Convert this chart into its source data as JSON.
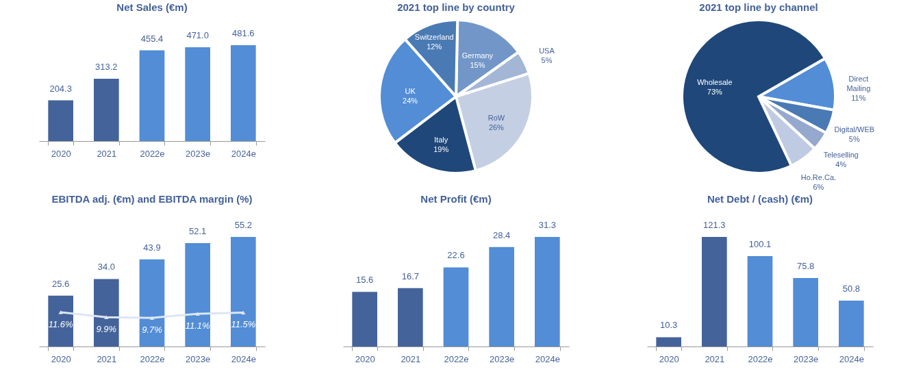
{
  "chart_data": [
    {
      "type": "bar",
      "title": "Net Sales (€m)",
      "categories": [
        "2020",
        "2021",
        "2022e",
        "2023e",
        "2024e"
      ],
      "values": [
        204.3,
        313.2,
        455.4,
        471.0,
        481.6
      ],
      "colors": [
        "#44639a",
        "#44639a",
        "#528dd6",
        "#528dd6",
        "#528dd6"
      ],
      "value_labels": [
        "204.3",
        "313.2",
        "455.4",
        "471.0",
        "481.6"
      ]
    },
    {
      "type": "pie",
      "title": "2021 top line by country",
      "categories": [
        "Germany",
        "USA",
        "RoW",
        "Italy",
        "UK",
        "Switzerland"
      ],
      "values": [
        15,
        5,
        26,
        19,
        24,
        12
      ],
      "colors": [
        "#7296c8",
        "#a3b6d6",
        "#c4cfe3",
        "#1f4779",
        "#528dd6",
        "#4a7ab4"
      ],
      "value_labels": [
        "15%",
        "5%",
        "26%",
        "19%",
        "24%",
        "12%"
      ]
    },
    {
      "type": "pie",
      "title": "2021 top line by channel",
      "categories": [
        "Direct Mailing",
        "Digital/WEB",
        "Teleselling",
        "Ho.Re.Ca.",
        "Wholesale"
      ],
      "values": [
        11,
        5,
        4,
        6,
        73
      ],
      "colors": [
        "#528dd6",
        "#4a7ab4",
        "#95a9cf",
        "#bfcbe2",
        "#1f4779"
      ],
      "value_labels": [
        "11%",
        "5%",
        "4%",
        "6%",
        "73%"
      ]
    },
    {
      "type": "bar",
      "title": "EBITDA adj. (€m) and EBITDA margin (%)",
      "categories": [
        "2020",
        "2021",
        "2022e",
        "2023e",
        "2024e"
      ],
      "series": [
        {
          "type": "bar",
          "colors": [
            "#44639a",
            "#44639a",
            "#528dd6",
            "#528dd6",
            "#528dd6"
          ],
          "values": [
            25.6,
            34.0,
            43.9,
            52.1,
            55.2
          ],
          "value_labels": [
            "25.6",
            "34.0",
            "43.9",
            "52.1",
            "55.2"
          ]
        },
        {
          "type": "line",
          "axis": "y2",
          "color": "#dce6f4",
          "values": [
            11.6,
            9.9,
            9.7,
            11.1,
            11.5
          ],
          "value_labels": [
            "11.6%",
            "9.9%",
            "9.7%",
            "11.1%",
            "11.5%"
          ]
        }
      ],
      "marker": "triangle"
    },
    {
      "type": "bar",
      "title": "Net Profit (€m)",
      "categories": [
        "2020",
        "2021",
        "2022e",
        "2023e",
        "2024e"
      ],
      "values": [
        15.6,
        16.7,
        22.6,
        28.4,
        31.3
      ],
      "colors": [
        "#44639a",
        "#44639a",
        "#528dd6",
        "#528dd6",
        "#528dd6"
      ],
      "value_labels": [
        "15.6",
        "16.7",
        "22.6",
        "28.4",
        "31.3"
      ]
    },
    {
      "type": "bar",
      "title": "Net Debt / (cash) (€m)",
      "categories": [
        "2020",
        "2021",
        "2022e",
        "2023e",
        "2024e"
      ],
      "values": [
        10.3,
        121.3,
        100.1,
        75.8,
        50.8
      ],
      "colors": [
        "#44639a",
        "#44639a",
        "#528dd6",
        "#528dd6",
        "#528dd6"
      ],
      "value_labels": [
        "10.3",
        "121.3",
        "100.1",
        "75.8",
        "50.8"
      ]
    }
  ]
}
